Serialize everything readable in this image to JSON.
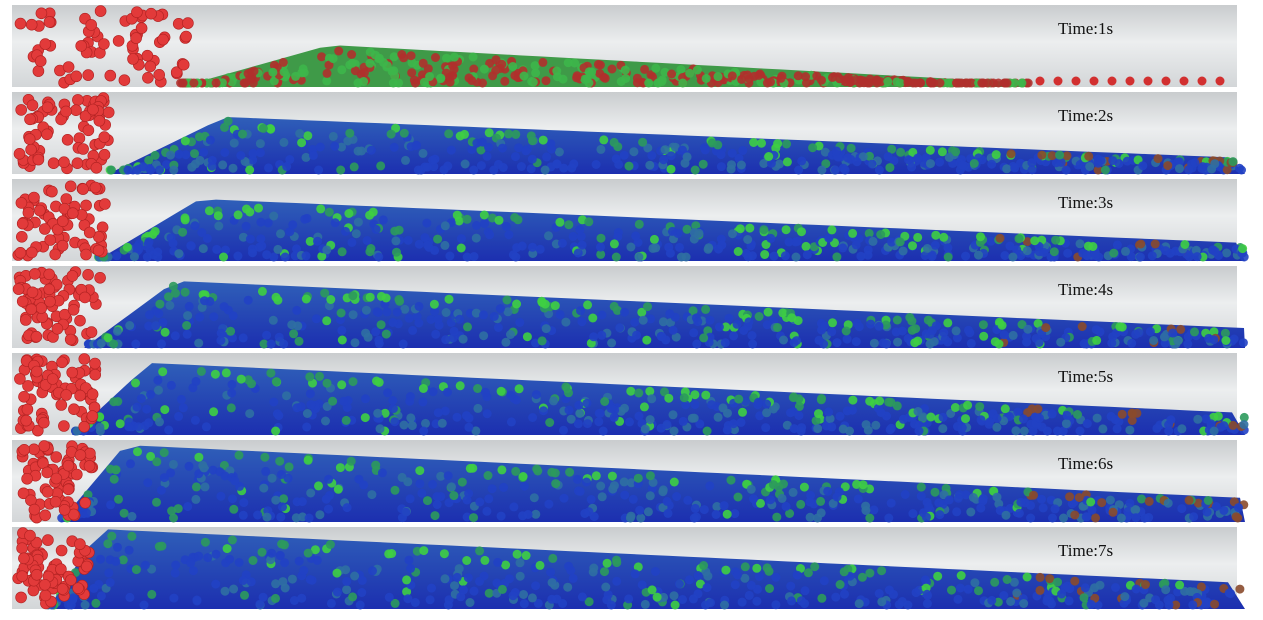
{
  "panels": [
    {
      "label": "Time:1s"
    },
    {
      "label": "Time:2s"
    },
    {
      "label": "Time:3s"
    },
    {
      "label": "Time:4s"
    },
    {
      "label": "Time:5s"
    },
    {
      "label": "Time:6s"
    },
    {
      "label": "Time:7s"
    }
  ]
}
